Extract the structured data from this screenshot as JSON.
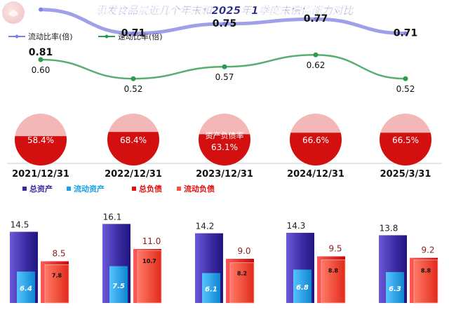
{
  "title": "惠发食品最近几个年末和2025年1季度末偿债能力对比",
  "colors": {
    "current_ratio": "#8080e0",
    "quick_ratio": "#2e9a4e",
    "pie_slice": "#d40f0f",
    "pie_rest": "#f4b7b7",
    "total_assets": "#3a2aa0",
    "current_assets": "#17a0e8",
    "total_liabilities": "#e41010",
    "current_liabilities": "#ff5040",
    "title": "#24248a"
  },
  "chart_data": [
    {
      "type": "line",
      "categories": [
        "2021/12/31",
        "2022/12/31",
        "2023/12/31",
        "2024/12/31",
        "2025/3/31"
      ],
      "series": [
        {
          "name": "流动比率(倍)",
          "values": [
            0.81,
            0.71,
            0.75,
            0.77,
            0.71
          ],
          "labels": [
            "0.81",
            "0.71",
            "0.75",
            "0.77",
            "0.71"
          ]
        },
        {
          "name": "速动比率(倍)",
          "values": [
            0.6,
            0.52,
            0.57,
            0.62,
            0.52
          ],
          "labels": [
            "0.60",
            "0.52",
            "0.57",
            "0.62",
            "0.52"
          ]
        }
      ],
      "legend_position": "top-left"
    },
    {
      "type": "pie",
      "categories": [
        "2021/12/31",
        "2022/12/31",
        "2023/12/31",
        "2024/12/31",
        "2025/3/31"
      ],
      "center_label": "资产负债率",
      "values": [
        58.4,
        68.4,
        63.1,
        66.6,
        66.5
      ],
      "labels": [
        "58.4%",
        "68.4%",
        "63.1%",
        "66.6%",
        "66.5%"
      ]
    },
    {
      "type": "bar",
      "categories": [
        "2021/12/31",
        "2022/12/31",
        "2023/12/31",
        "2024/12/31",
        "2025/3/31"
      ],
      "series": [
        {
          "name": "总资产",
          "values": [
            14.5,
            16.1,
            14.2,
            14.3,
            13.8
          ],
          "labels": [
            "14.5",
            "16.1",
            "14.2",
            "14.3",
            "13.8"
          ]
        },
        {
          "name": "流动资产",
          "values": [
            6.4,
            7.5,
            6.1,
            6.8,
            6.3
          ],
          "labels": [
            "6.4",
            "7.5",
            "6.1",
            "6.8",
            "6.3"
          ]
        },
        {
          "name": "总负债",
          "values": [
            8.5,
            11.0,
            9.0,
            9.5,
            9.2
          ],
          "labels": [
            "8.5",
            "11.0",
            "9.0",
            "9.5",
            "9.2"
          ]
        },
        {
          "name": "流动负债",
          "values": [
            7.8,
            10.7,
            8.2,
            8.8,
            8.8
          ],
          "labels": [
            "7.8",
            "10.7",
            "8.2",
            "8.8",
            "8.8"
          ]
        }
      ],
      "legend_position": "top-left"
    }
  ]
}
